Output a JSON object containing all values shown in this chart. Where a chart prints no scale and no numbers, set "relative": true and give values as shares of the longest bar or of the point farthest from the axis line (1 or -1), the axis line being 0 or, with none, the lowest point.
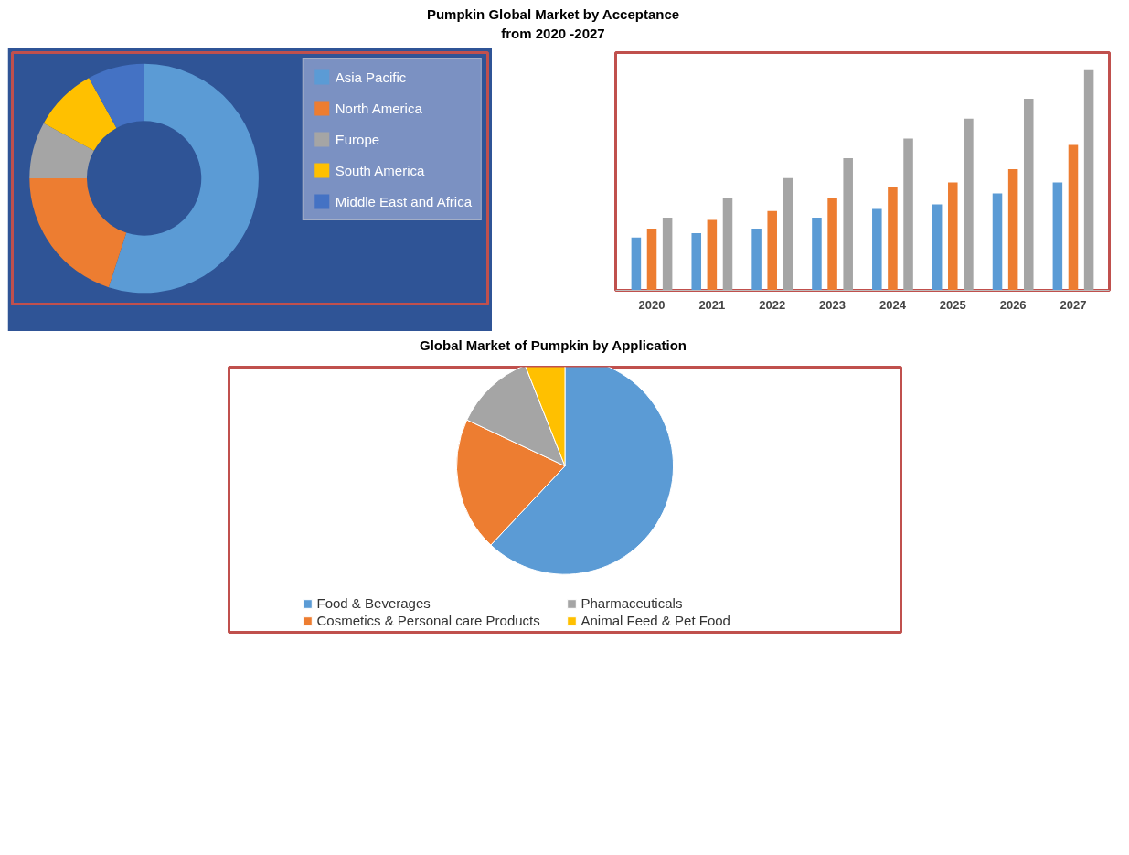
{
  "chart_data": [
    {
      "type": "donut",
      "title": "Pumpkin Global Market by Acceptance\nfrom 2020 -2027",
      "categories": [
        "Asia Pacific",
        "North America",
        "Europe",
        "South America",
        "Middle East and Africa"
      ],
      "values": [
        55,
        20,
        8,
        9,
        8
      ],
      "colors": [
        "#5b9bd5",
        "#ed7d31",
        "#a5a5a5",
        "#ffc000",
        "#4472c4"
      ],
      "legend": "right"
    },
    {
      "type": "bar",
      "relative": true,
      "categories": [
        "2020",
        "2021",
        "2022",
        "2023",
        "2024",
        "2025",
        "2026",
        "2027"
      ],
      "series": [
        {
          "color": "#5b9bd5",
          "values": [
            0.24,
            0.26,
            0.28,
            0.33,
            0.37,
            0.39,
            0.44,
            0.49
          ]
        },
        {
          "color": "#ed7d31",
          "values": [
            0.28,
            0.32,
            0.36,
            0.42,
            0.47,
            0.49,
            0.55,
            0.66
          ]
        },
        {
          "color": "#a5a5a5",
          "values": [
            0.33,
            0.42,
            0.51,
            0.6,
            0.69,
            0.78,
            0.87,
            1
          ]
        }
      ],
      "grid": false,
      "legend": false
    },
    {
      "type": "pie",
      "title": "Global Market of Pumpkin by Application",
      "categories": [
        "Food & Beverages",
        "Cosmetics & Personal care Products",
        "Pharmaceuticals",
        "Animal Feed & Pet Food"
      ],
      "values": [
        62,
        20,
        12,
        6
      ],
      "colors": [
        "#5b9bd5",
        "#ed7d31",
        "#a5a5a5",
        "#ffc000"
      ],
      "legend": "bottom"
    }
  ]
}
